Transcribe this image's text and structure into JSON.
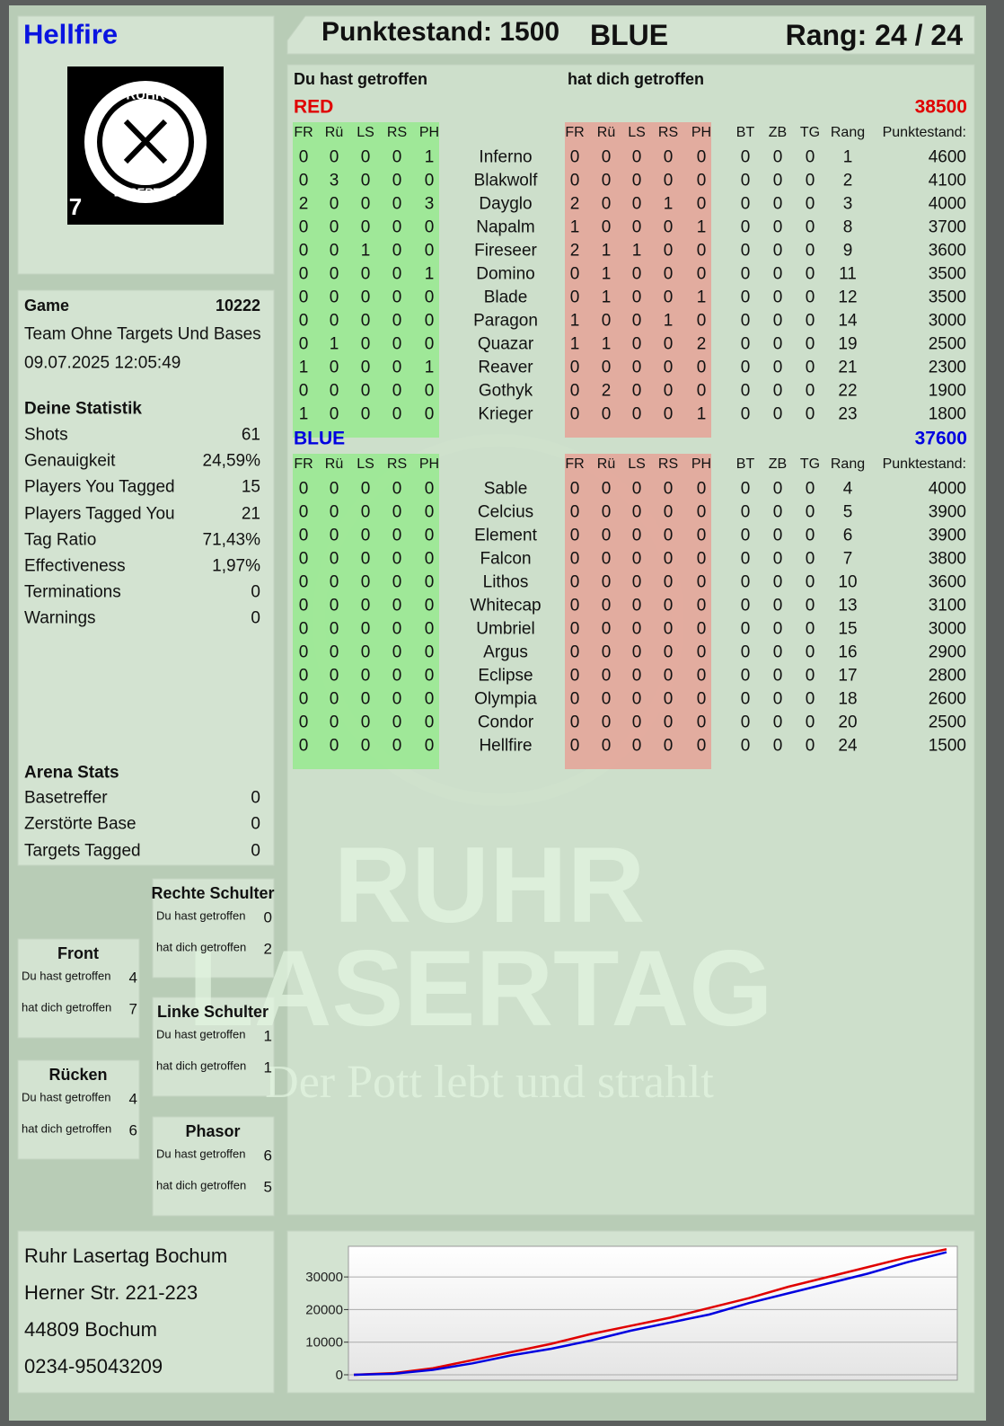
{
  "header": {
    "player": "Hellfire",
    "score": "Punktestand: 1500",
    "team": "BLUE",
    "rank": "Rang: 24 / 24"
  },
  "logo": {
    "top": "RUHR",
    "bottom": "LASERTAG",
    "badge": "7"
  },
  "game": {
    "label": "Game",
    "id": 10222,
    "mode": "Team Ohne Targets Und Bases",
    "datetime": "09.07.2025 12:05:49"
  },
  "stats": {
    "title": "Deine Statistik",
    "rows": [
      [
        "Shots",
        61
      ],
      [
        "Genauigkeit",
        "24,59%"
      ],
      [
        "Players You Tagged",
        15
      ],
      [
        "Players Tagged You",
        21
      ],
      [
        "Tag Ratio",
        "71,43%"
      ],
      [
        "Effectiveness",
        "1,97%"
      ],
      [
        "Terminations",
        0
      ],
      [
        "Warnings",
        0
      ]
    ]
  },
  "arena": {
    "title": "Arena Stats",
    "rows": [
      [
        "Basetreffer",
        0
      ],
      [
        "Zerstörte Base",
        0
      ],
      [
        "Targets Tagged",
        0
      ]
    ]
  },
  "zones": [
    {
      "title": "Rechte Schulter",
      "rows": [
        [
          "Du hast getroffen",
          0
        ],
        [
          "hat dich getroffen",
          2
        ]
      ]
    },
    {
      "title": "Front",
      "rows": [
        [
          "Du hast getroffen",
          4
        ],
        [
          "hat dich getroffen",
          7
        ]
      ]
    },
    {
      "title": "Linke Schulter",
      "rows": [
        [
          "Du hast getroffen",
          1
        ],
        [
          "hat dich getroffen",
          1
        ]
      ]
    },
    {
      "title": "Rücken",
      "rows": [
        [
          "Du hast getroffen",
          4
        ],
        [
          "hat dich getroffen",
          6
        ]
      ]
    },
    {
      "title": "Phasor",
      "rows": [
        [
          "Du hast getroffen",
          6
        ],
        [
          "hat dich getroffen",
          5
        ]
      ]
    }
  ],
  "table": {
    "given": "Du hast getroffen",
    "received": "hat dich getroffen",
    "hit_columns": [
      "FR",
      "Rü",
      "LS",
      "RS",
      "PH"
    ],
    "stat_columns": [
      "BT",
      "ZB",
      "TG",
      "Rang",
      "Punktestand:"
    ],
    "teams": [
      {
        "name": "RED",
        "total": 38500,
        "color": "#e00000",
        "rows": [
          [
            0,
            0,
            0,
            0,
            1,
            "Inferno",
            0,
            0,
            0,
            0,
            0,
            0,
            0,
            0,
            1,
            4600
          ],
          [
            0,
            3,
            0,
            0,
            0,
            "Blakwolf",
            0,
            0,
            0,
            0,
            0,
            0,
            0,
            0,
            2,
            4100
          ],
          [
            2,
            0,
            0,
            0,
            3,
            "Dayglo",
            2,
            0,
            0,
            1,
            0,
            0,
            0,
            0,
            3,
            4000
          ],
          [
            0,
            0,
            0,
            0,
            0,
            "Napalm",
            1,
            0,
            0,
            0,
            1,
            0,
            0,
            0,
            8,
            3700
          ],
          [
            0,
            0,
            1,
            0,
            0,
            "Fireseer",
            2,
            1,
            1,
            0,
            0,
            0,
            0,
            0,
            9,
            3600
          ],
          [
            0,
            0,
            0,
            0,
            1,
            "Domino",
            0,
            1,
            0,
            0,
            0,
            0,
            0,
            0,
            11,
            3500
          ],
          [
            0,
            0,
            0,
            0,
            0,
            "Blade",
            0,
            1,
            0,
            0,
            1,
            0,
            0,
            0,
            12,
            3500
          ],
          [
            0,
            0,
            0,
            0,
            0,
            "Paragon",
            1,
            0,
            0,
            1,
            0,
            0,
            0,
            0,
            14,
            3000
          ],
          [
            0,
            1,
            0,
            0,
            0,
            "Quazar",
            1,
            1,
            0,
            0,
            2,
            0,
            0,
            0,
            19,
            2500
          ],
          [
            1,
            0,
            0,
            0,
            1,
            "Reaver",
            0,
            0,
            0,
            0,
            0,
            0,
            0,
            0,
            21,
            2300
          ],
          [
            0,
            0,
            0,
            0,
            0,
            "Gothyk",
            0,
            2,
            0,
            0,
            0,
            0,
            0,
            0,
            22,
            1900
          ],
          [
            1,
            0,
            0,
            0,
            0,
            "Krieger",
            0,
            0,
            0,
            0,
            1,
            0,
            0,
            0,
            23,
            1800
          ]
        ]
      },
      {
        "name": "BLUE",
        "total": 37600,
        "color": "#0000e0",
        "rows": [
          [
            0,
            0,
            0,
            0,
            0,
            "Sable",
            0,
            0,
            0,
            0,
            0,
            0,
            0,
            0,
            4,
            4000
          ],
          [
            0,
            0,
            0,
            0,
            0,
            "Celcius",
            0,
            0,
            0,
            0,
            0,
            0,
            0,
            0,
            5,
            3900
          ],
          [
            0,
            0,
            0,
            0,
            0,
            "Element",
            0,
            0,
            0,
            0,
            0,
            0,
            0,
            0,
            6,
            3900
          ],
          [
            0,
            0,
            0,
            0,
            0,
            "Falcon",
            0,
            0,
            0,
            0,
            0,
            0,
            0,
            0,
            7,
            3800
          ],
          [
            0,
            0,
            0,
            0,
            0,
            "Lithos",
            0,
            0,
            0,
            0,
            0,
            0,
            0,
            0,
            10,
            3600
          ],
          [
            0,
            0,
            0,
            0,
            0,
            "Whitecap",
            0,
            0,
            0,
            0,
            0,
            0,
            0,
            0,
            13,
            3100
          ],
          [
            0,
            0,
            0,
            0,
            0,
            "Umbriel",
            0,
            0,
            0,
            0,
            0,
            0,
            0,
            0,
            15,
            3000
          ],
          [
            0,
            0,
            0,
            0,
            0,
            "Argus",
            0,
            0,
            0,
            0,
            0,
            0,
            0,
            0,
            16,
            2900
          ],
          [
            0,
            0,
            0,
            0,
            0,
            "Eclipse",
            0,
            0,
            0,
            0,
            0,
            0,
            0,
            0,
            17,
            2800
          ],
          [
            0,
            0,
            0,
            0,
            0,
            "Olympia",
            0,
            0,
            0,
            0,
            0,
            0,
            0,
            0,
            18,
            2600
          ],
          [
            0,
            0,
            0,
            0,
            0,
            "Condor",
            0,
            0,
            0,
            0,
            0,
            0,
            0,
            0,
            20,
            2500
          ],
          [
            0,
            0,
            0,
            0,
            0,
            "Hellfire",
            0,
            0,
            0,
            0,
            0,
            0,
            0,
            0,
            24,
            1500
          ]
        ]
      }
    ]
  },
  "watermark": {
    "line1": "RUHR",
    "line2": "LASERTAG",
    "slogan": "Der Pott lebt und strahlt"
  },
  "address": [
    "Ruhr Lasertag Bochum",
    "Herner Str. 221-223",
    "44809 Bochum",
    "0234-95043209"
  ],
  "chart_data": {
    "type": "line",
    "ylim": [
      0,
      39400
    ],
    "yticks": [
      0,
      10000,
      20000,
      30000
    ],
    "grid": true,
    "series": [
      {
        "name": "RED",
        "color": "#e00000",
        "values": [
          0,
          500,
          2000,
          4500,
          7000,
          9500,
          12500,
          15000,
          17500,
          20500,
          23500,
          27000,
          30000,
          33000,
          36000,
          38500
        ]
      },
      {
        "name": "BLUE",
        "color": "#0000e0",
        "values": [
          0,
          300,
          1500,
          3500,
          6000,
          8000,
          10500,
          13500,
          16000,
          18500,
          22000,
          25000,
          28000,
          31000,
          34500,
          37600
        ]
      }
    ]
  }
}
